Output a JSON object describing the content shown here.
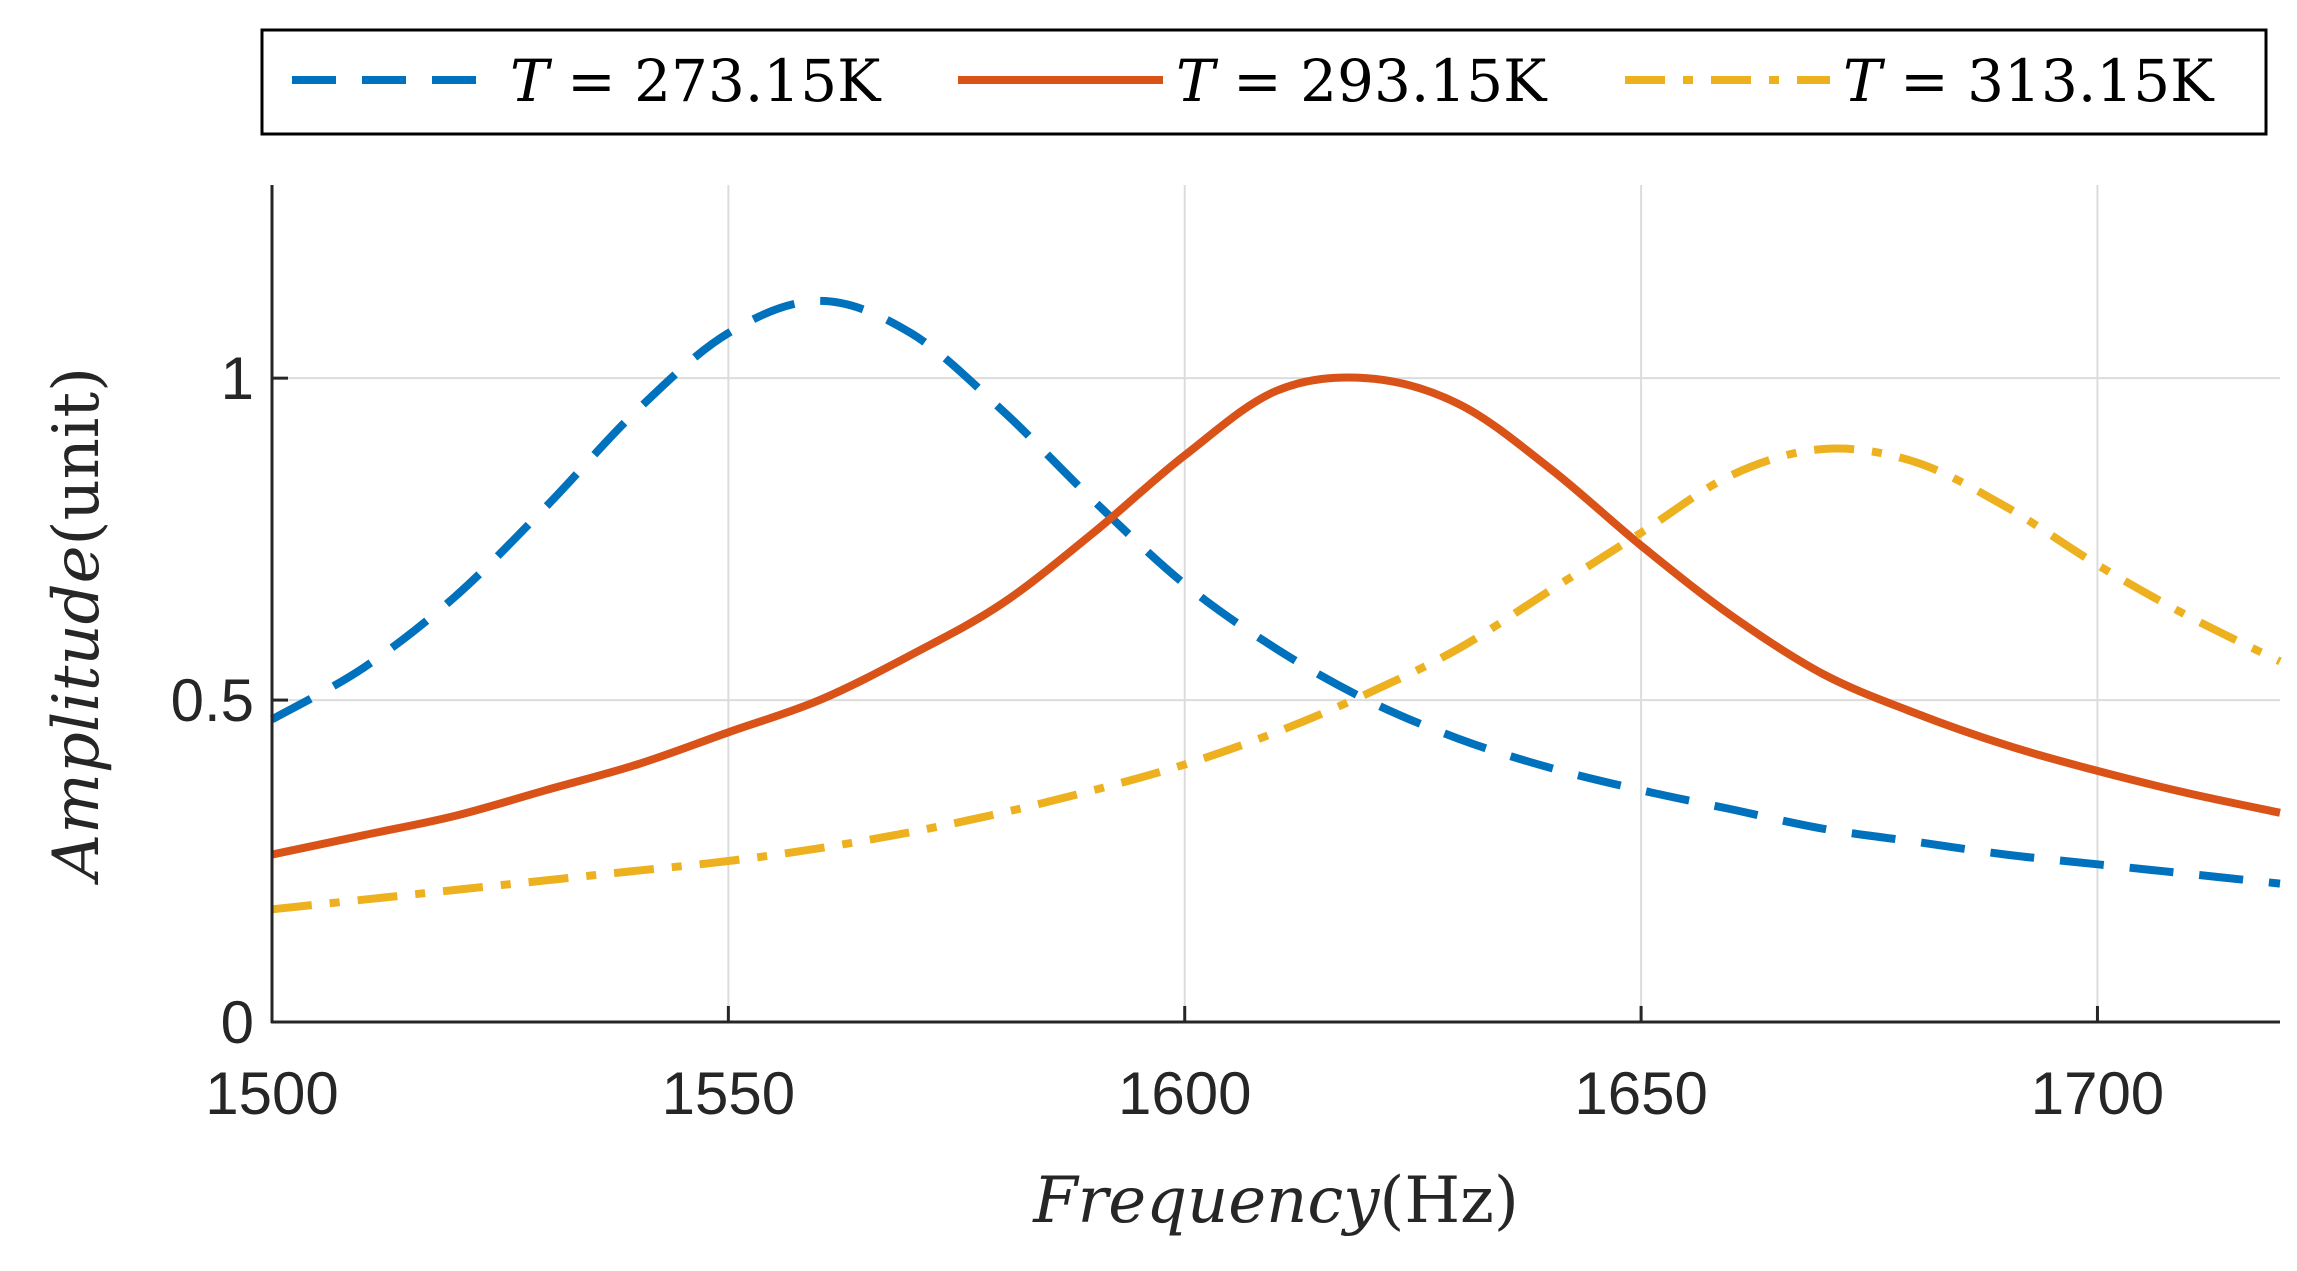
{
  "chart_data": {
    "type": "line",
    "xlabel_var": "Frequency",
    "xlabel_unit": "(Hz)",
    "ylabel_var": "Amplitude",
    "ylabel_unit": "(unit)",
    "xlim": [
      1500,
      1720
    ],
    "ylim": [
      0,
      1.3
    ],
    "xticks": [
      1500,
      1550,
      1600,
      1650,
      1700
    ],
    "xtick_labels": [
      "1500",
      "1550",
      "1600",
      "1650",
      "1700"
    ],
    "yticks": [
      0,
      0.5,
      1
    ],
    "ytick_labels": [
      "0",
      "0.5",
      "1"
    ],
    "grid": true,
    "legend_placement": "top, horizontal, outside plot",
    "series": [
      {
        "name_var": "T",
        "name_rest": " = 273.15K",
        "color": "#0072BD",
        "style": "dashed",
        "x": [
          1500,
          1510,
          1520,
          1530,
          1540,
          1550,
          1560,
          1570,
          1580,
          1590,
          1600,
          1610,
          1620,
          1630,
          1640,
          1650,
          1660,
          1670,
          1680,
          1690,
          1700,
          1710,
          1720
        ],
        "y": [
          0.47,
          0.55,
          0.66,
          0.8,
          0.95,
          1.07,
          1.12,
          1.07,
          0.95,
          0.81,
          0.68,
          0.58,
          0.5,
          0.44,
          0.395,
          0.36,
          0.33,
          0.3,
          0.28,
          0.26,
          0.245,
          0.23,
          0.215
        ]
      },
      {
        "name_var": "T",
        "name_rest": " = 293.15K",
        "color": "#D95319",
        "style": "solid",
        "x": [
          1500,
          1510,
          1520,
          1530,
          1540,
          1550,
          1560,
          1570,
          1580,
          1590,
          1600,
          1610,
          1620,
          1630,
          1640,
          1650,
          1660,
          1670,
          1680,
          1690,
          1700,
          1710,
          1720
        ],
        "y": [
          0.26,
          0.29,
          0.32,
          0.36,
          0.4,
          0.45,
          0.5,
          0.57,
          0.65,
          0.76,
          0.88,
          0.98,
          1.0,
          0.96,
          0.86,
          0.74,
          0.63,
          0.54,
          0.48,
          0.43,
          0.39,
          0.355,
          0.325
        ]
      },
      {
        "name_var": "T",
        "name_rest": " = 313.15K",
        "color": "#EDB120",
        "style": "dashdot",
        "x": [
          1500,
          1510,
          1520,
          1530,
          1540,
          1550,
          1560,
          1570,
          1580,
          1590,
          1600,
          1610,
          1620,
          1630,
          1640,
          1650,
          1660,
          1670,
          1680,
          1690,
          1700,
          1710,
          1720
        ],
        "y": [
          0.175,
          0.19,
          0.205,
          0.22,
          0.235,
          0.25,
          0.27,
          0.295,
          0.325,
          0.36,
          0.4,
          0.45,
          0.51,
          0.58,
          0.67,
          0.76,
          0.85,
          0.89,
          0.87,
          0.8,
          0.71,
          0.63,
          0.56
        ]
      }
    ]
  }
}
